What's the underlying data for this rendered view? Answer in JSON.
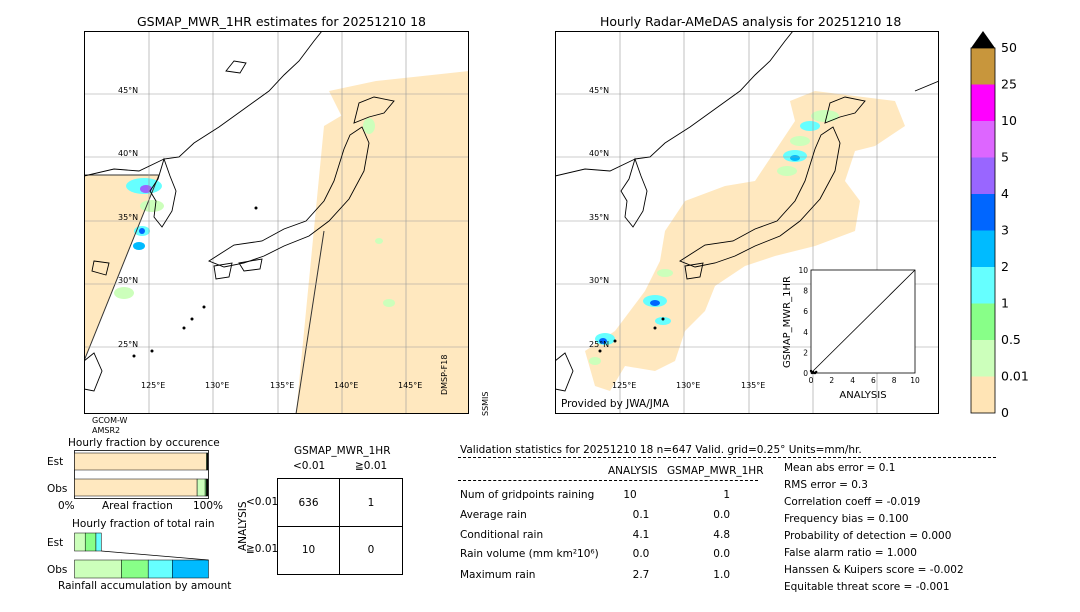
{
  "left_map": {
    "title": "GSMAP_MWR_1HR estimates for 20251210 18",
    "lat_labels": [
      "45°N",
      "40°N",
      "35°N",
      "30°N",
      "25°N"
    ],
    "lon_labels": [
      "125°E",
      "130°E",
      "135°E",
      "140°E",
      "145°E"
    ],
    "sat_left": [
      "GCOM-W",
      "AMSR2"
    ],
    "sat_right": [
      "DMSP-F18",
      "SSMIS"
    ]
  },
  "right_map": {
    "title": "Hourly Radar-AMeDAS analysis for 20251210 18",
    "lat_labels": [
      "45°N",
      "40°N",
      "35°N",
      "30°N",
      "25°N"
    ],
    "lon_labels": [
      "125°E",
      "130°E",
      "135°E"
    ],
    "credit": "Provided by JWA/JMA"
  },
  "colorbar": {
    "labels": [
      "50",
      "25",
      "10",
      "5",
      "4",
      "3",
      "2",
      "1",
      "0.5",
      "0.01",
      "0"
    ],
    "colors": [
      "#c8963c",
      "#ff00ff",
      "#dd66ff",
      "#9966ff",
      "#0066ff",
      "#00bbff",
      "#66ffff",
      "#88ff88",
      "#ccffbb",
      "#ffe4b5"
    ],
    "overflow_color": "#000000"
  },
  "scatter": {
    "xlabel": "ANALYSIS",
    "ylabel": "GSMAP_MWR_1HR",
    "ticks": [
      "0",
      "2",
      "4",
      "6",
      "8",
      "10"
    ],
    "ytick_top": "10"
  },
  "fraction_occurrence": {
    "title": "Hourly fraction by occurence",
    "rows": [
      "Est",
      "Obs"
    ],
    "axis_left": "0%",
    "axis_mid": "Areal fraction",
    "axis_right": "100%"
  },
  "fraction_rain": {
    "title": "Hourly fraction of total rain",
    "rows": [
      "Est",
      "Obs"
    ],
    "caption": "Rainfall accumulation by amount"
  },
  "contingency": {
    "title": "GSMAP_MWR_1HR",
    "col_headers": [
      "<0.01",
      "≧0.01"
    ],
    "row_axis": "ANALYSIS",
    "row_headers": [
      "<0.01",
      "≧0.01"
    ],
    "cells": [
      [
        "636",
        "1"
      ],
      [
        "10",
        "0"
      ]
    ]
  },
  "validation": {
    "header": "Validation statistics for 20251210 18  n=647 Valid. grid=0.25° Units=mm/hr.",
    "col_a": "ANALYSIS",
    "col_b": "GSMAP_MWR_1HR",
    "rows": [
      {
        "label": "Num of gridpoints raining",
        "a": "10",
        "b": "1"
      },
      {
        "label": "Average rain",
        "a": "0.1",
        "b": "0.0"
      },
      {
        "label": "Conditional rain",
        "a": "4.1",
        "b": "4.8"
      },
      {
        "label": "Rain volume (mm km²10⁶)",
        "a": "0.0",
        "b": "0.0"
      },
      {
        "label": "Maximum rain",
        "a": "2.7",
        "b": "1.0"
      }
    ],
    "scores": [
      "Mean abs error =    0.1",
      "RMS error =    0.3",
      "Correlation coeff = -0.019",
      "Frequency bias =  0.100",
      "Probability of detection =  0.000",
      "False alarm ratio =  1.000",
      "Hanssen & Kuipers score = -0.002",
      "Equitable threat score = -0.001"
    ]
  },
  "chart_data": [
    {
      "type": "scatter",
      "title": "",
      "xlabel": "ANALYSIS",
      "ylabel": "GSMAP_MWR_1HR",
      "xlim": [
        0,
        10
      ],
      "ylim": [
        0,
        10
      ],
      "points": [
        [
          0.1,
          0.0
        ],
        [
          0.2,
          0.1
        ],
        [
          0.3,
          0.0
        ],
        [
          0.5,
          0.1
        ],
        [
          0.0,
          0.2
        ],
        [
          0.4,
          0.0
        ]
      ],
      "reference_line": [
        [
          0,
          0
        ],
        [
          10,
          10
        ]
      ]
    },
    {
      "type": "bar",
      "title": "Hourly fraction by occurence",
      "categories": [
        "Est",
        "Obs"
      ],
      "series": [
        {
          "values": [
            0.985,
            0.915
          ]
        },
        {
          "values": [
            0.0,
            0.06
          ]
        },
        {
          "values": [
            0.005,
            0.01
          ]
        },
        {
          "values": [
            0.005,
            0.01
          ]
        }
      ]
    },
    {
      "type": "bar",
      "title": "Hourly fraction of total rain",
      "categories": [
        "Est",
        "Obs"
      ],
      "series": [
        {
          "values": [
            0.08,
            0.35
          ]
        },
        {
          "values": [
            0.08,
            0.2
          ]
        },
        {
          "values": [
            0.04,
            0.18
          ]
        },
        {
          "values": [
            0.0,
            0.27
          ]
        }
      ]
    }
  ]
}
